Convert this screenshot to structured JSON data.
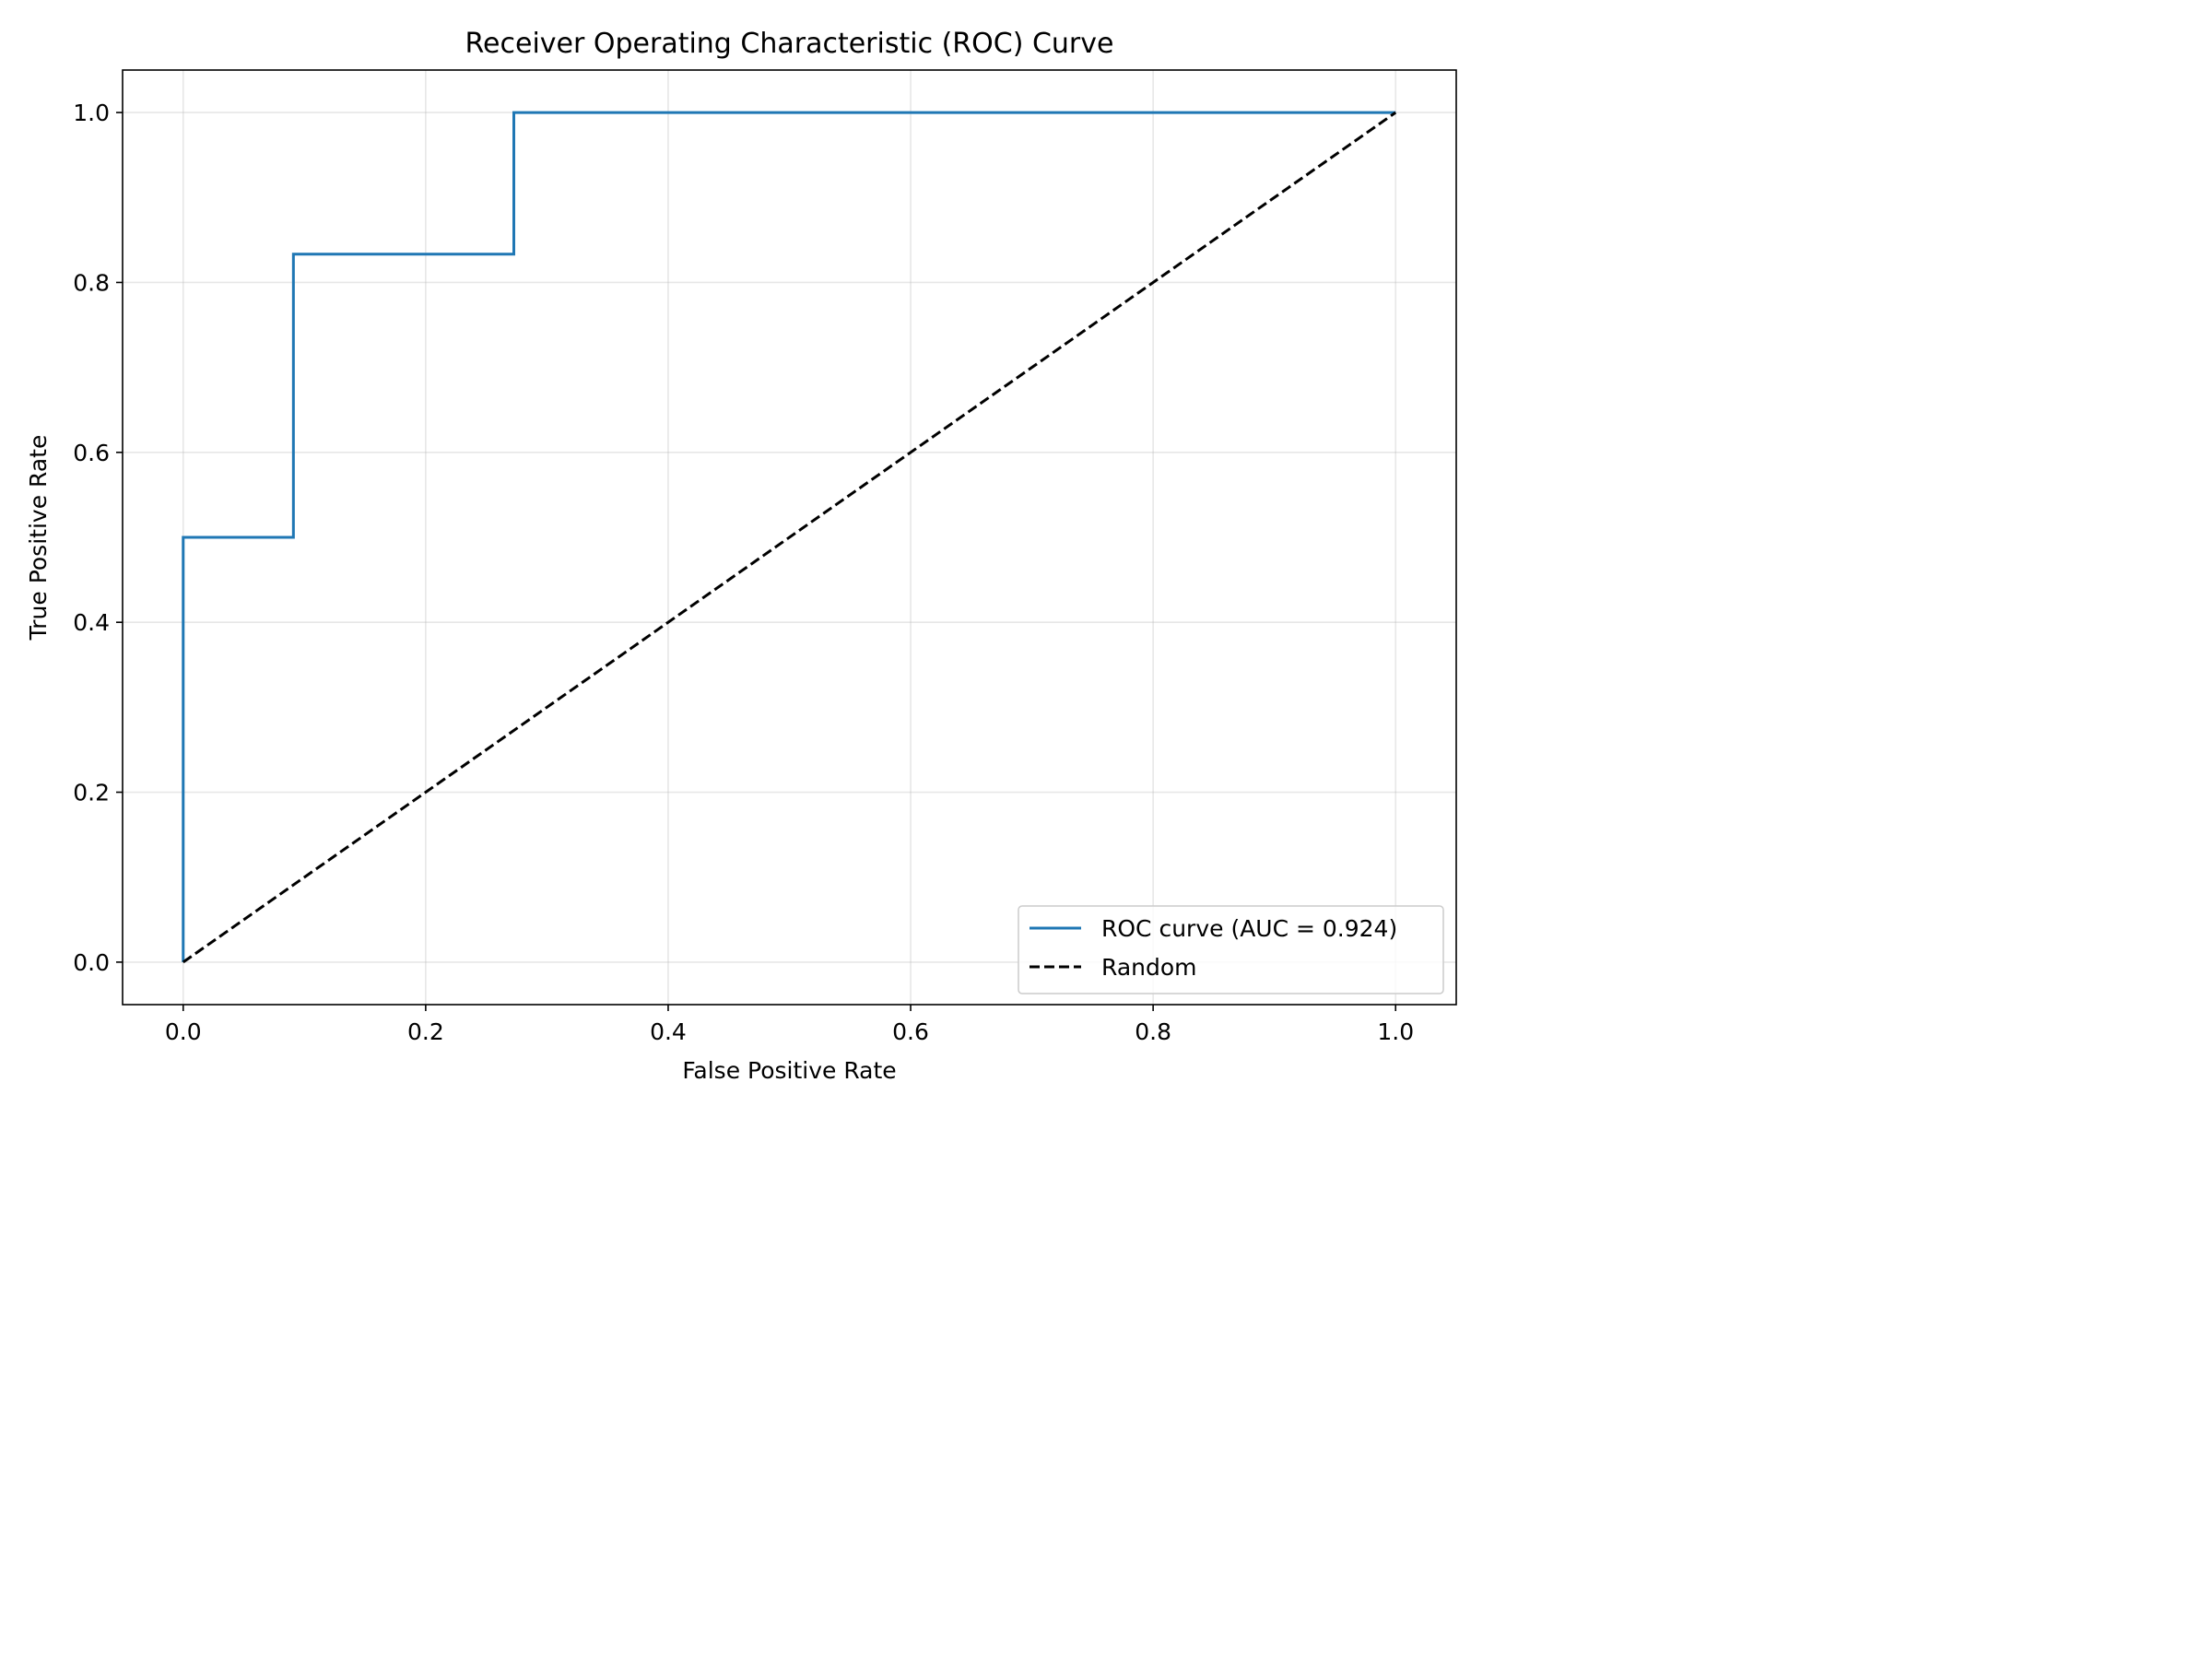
{
  "chart_data": {
    "type": "line",
    "title": "Receiver Operating Characteristic (ROC) Curve",
    "xlabel": "False Positive Rate",
    "ylabel": "True Positive Rate",
    "xlim": [
      -0.05,
      1.05
    ],
    "ylim": [
      -0.05,
      1.05
    ],
    "xticks": [
      0.0,
      0.2,
      0.4,
      0.6,
      0.8,
      1.0
    ],
    "xtick_labels": [
      "0.0",
      "0.2",
      "0.4",
      "0.6",
      "0.8",
      "1.0"
    ],
    "yticks": [
      0.0,
      0.2,
      0.4,
      0.6,
      0.8,
      1.0
    ],
    "ytick_labels": [
      "0.0",
      "0.2",
      "0.4",
      "0.6",
      "0.8",
      "1.0"
    ],
    "grid": true,
    "legend_position": "lower-right",
    "series": [
      {
        "name": "ROC curve (AUC = 0.924)",
        "style": "solid",
        "color": "#1f77b4",
        "step": true,
        "x": [
          0.0,
          0.0,
          0.0909,
          0.0909,
          0.2727,
          0.2727,
          1.0
        ],
        "y": [
          0.0,
          0.5,
          0.5,
          0.8333,
          0.8333,
          1.0,
          1.0
        ]
      },
      {
        "name": "Random",
        "style": "dashed",
        "color": "#000000",
        "x": [
          0.0,
          1.0
        ],
        "y": [
          0.0,
          1.0
        ]
      }
    ]
  }
}
